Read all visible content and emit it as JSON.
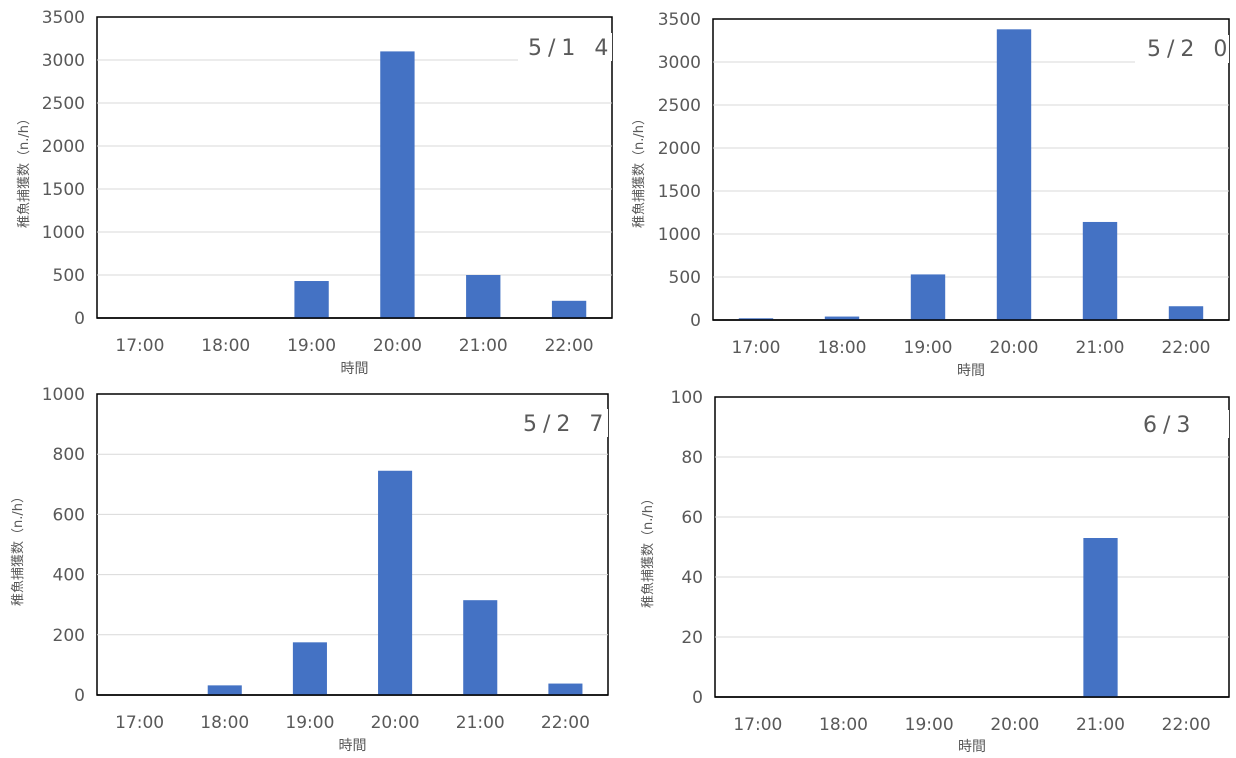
{
  "colors": {
    "bar": "#4472C4",
    "grid": "#d9d9d9",
    "axis": "#000000",
    "text": "#595959"
  },
  "chart_data": [
    {
      "type": "bar",
      "panel_label": "5/1 4",
      "categories": [
        "17:00",
        "18:00",
        "19:00",
        "20:00",
        "21:00",
        "22:00"
      ],
      "values": [
        0,
        0,
        430,
        3100,
        500,
        200
      ],
      "xlabel": "時間",
      "ylabel": "稚魚捕獲数（n./h）",
      "ylim": [
        0,
        3500
      ],
      "yticks": [
        0,
        500,
        1000,
        1500,
        2000,
        2500,
        3000,
        3500
      ],
      "grid": true
    },
    {
      "type": "bar",
      "panel_label": "5/2 0",
      "categories": [
        "17:00",
        "18:00",
        "19:00",
        "20:00",
        "21:00",
        "22:00"
      ],
      "values": [
        20,
        40,
        530,
        3380,
        1140,
        160
      ],
      "xlabel": "時間",
      "ylabel": "稚魚捕獲数（n./h）",
      "ylim": [
        0,
        3500
      ],
      "yticks": [
        0,
        500,
        1000,
        1500,
        2000,
        2500,
        3000,
        3500
      ],
      "grid": true
    },
    {
      "type": "bar",
      "panel_label": "5/2 7",
      "categories": [
        "17:00",
        "18:00",
        "19:00",
        "20:00",
        "21:00",
        "22:00"
      ],
      "values": [
        0,
        32,
        175,
        745,
        315,
        38
      ],
      "xlabel": "時間",
      "ylabel": "稚魚捕獲数（n./h）",
      "ylim": [
        0,
        1000
      ],
      "yticks": [
        0,
        200,
        400,
        600,
        800,
        1000
      ],
      "grid": true
    },
    {
      "type": "bar",
      "panel_label": "6/3",
      "categories": [
        "17:00",
        "18:00",
        "19:00",
        "20:00",
        "21:00",
        "22:00"
      ],
      "values": [
        0,
        0,
        0,
        0,
        53,
        0
      ],
      "xlabel": "時間",
      "ylabel": "稚魚捕獲数（n./h）",
      "ylim": [
        0,
        100
      ],
      "yticks": [
        0,
        20,
        40,
        60,
        80,
        100
      ],
      "grid": true
    }
  ]
}
